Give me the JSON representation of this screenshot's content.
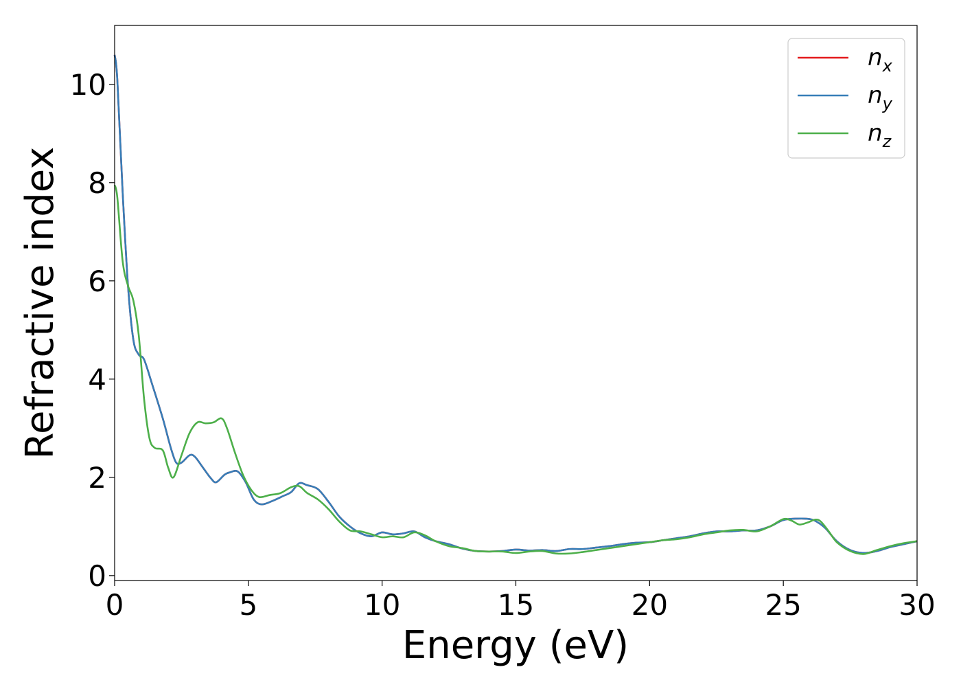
{
  "chart_data": {
    "type": "line",
    "title": "",
    "xlabel": "Energy (eV)",
    "ylabel": "Refractive index",
    "xlim": [
      0,
      30
    ],
    "ylim": [
      -0.1,
      11.2
    ],
    "xticks": [
      0,
      5,
      10,
      15,
      20,
      25,
      30
    ],
    "yticks": [
      0,
      2,
      4,
      6,
      8,
      10
    ],
    "grid": false,
    "legend_position": "top-right",
    "series": [
      {
        "name": "n",
        "subscript": "x",
        "color": "#e41a1c",
        "x": [
          0,
          0.1,
          0.3,
          0.5,
          0.7,
          0.9,
          1.1,
          1.4,
          1.8,
          2.1,
          2.3,
          2.5,
          2.8,
          3.0,
          3.3,
          3.6,
          3.8,
          4.1,
          4.3,
          4.6,
          4.9,
          5.2,
          5.5,
          5.9,
          6.3,
          6.6,
          6.9,
          7.2,
          7.6,
          8.0,
          8.4,
          8.8,
          9.2,
          9.6,
          10.0,
          10.4,
          10.8,
          11.2,
          11.6,
          12.0,
          12.5,
          13.0,
          13.5,
          14.0,
          14.5,
          15.0,
          15.5,
          16.0,
          16.5,
          17.0,
          17.5,
          18.0,
          18.5,
          19.0,
          19.5,
          20.0,
          20.5,
          21.0,
          21.5,
          22.0,
          22.5,
          23.0,
          23.5,
          24.0,
          24.5,
          25.0,
          25.5,
          26.0,
          26.3,
          26.6,
          27.0,
          27.5,
          28.0,
          28.5,
          29.0,
          29.5,
          30.0
        ],
        "y": [
          10.6,
          10.1,
          7.8,
          5.9,
          4.8,
          4.5,
          4.4,
          3.9,
          3.2,
          2.6,
          2.3,
          2.3,
          2.45,
          2.42,
          2.2,
          1.98,
          1.9,
          2.05,
          2.1,
          2.12,
          1.9,
          1.55,
          1.45,
          1.52,
          1.62,
          1.7,
          1.88,
          1.84,
          1.76,
          1.5,
          1.2,
          1.0,
          0.86,
          0.8,
          0.88,
          0.84,
          0.86,
          0.9,
          0.78,
          0.7,
          0.64,
          0.55,
          0.5,
          0.49,
          0.5,
          0.53,
          0.51,
          0.52,
          0.5,
          0.54,
          0.54,
          0.57,
          0.6,
          0.64,
          0.67,
          0.68,
          0.72,
          0.76,
          0.8,
          0.86,
          0.9,
          0.9,
          0.92,
          0.92,
          1.0,
          1.13,
          1.16,
          1.15,
          1.08,
          0.95,
          0.7,
          0.52,
          0.46,
          0.5,
          0.58,
          0.64,
          0.7
        ]
      },
      {
        "name": "n",
        "subscript": "y",
        "color": "#377eb8",
        "x": [
          0,
          0.1,
          0.3,
          0.5,
          0.7,
          0.9,
          1.1,
          1.4,
          1.8,
          2.1,
          2.3,
          2.5,
          2.8,
          3.0,
          3.3,
          3.6,
          3.8,
          4.1,
          4.3,
          4.6,
          4.9,
          5.2,
          5.5,
          5.9,
          6.3,
          6.6,
          6.9,
          7.2,
          7.6,
          8.0,
          8.4,
          8.8,
          9.2,
          9.6,
          10.0,
          10.4,
          10.8,
          11.2,
          11.6,
          12.0,
          12.5,
          13.0,
          13.5,
          14.0,
          14.5,
          15.0,
          15.5,
          16.0,
          16.5,
          17.0,
          17.5,
          18.0,
          18.5,
          19.0,
          19.5,
          20.0,
          20.5,
          21.0,
          21.5,
          22.0,
          22.5,
          23.0,
          23.5,
          24.0,
          24.5,
          25.0,
          25.5,
          26.0,
          26.3,
          26.6,
          27.0,
          27.5,
          28.0,
          28.5,
          29.0,
          29.5,
          30.0
        ],
        "y": [
          10.6,
          10.1,
          7.8,
          5.9,
          4.8,
          4.5,
          4.4,
          3.9,
          3.2,
          2.6,
          2.3,
          2.3,
          2.45,
          2.42,
          2.2,
          1.98,
          1.9,
          2.05,
          2.1,
          2.12,
          1.9,
          1.55,
          1.45,
          1.52,
          1.62,
          1.7,
          1.88,
          1.84,
          1.76,
          1.5,
          1.2,
          1.0,
          0.86,
          0.8,
          0.88,
          0.84,
          0.86,
          0.9,
          0.78,
          0.7,
          0.64,
          0.55,
          0.5,
          0.49,
          0.5,
          0.53,
          0.51,
          0.52,
          0.5,
          0.54,
          0.54,
          0.57,
          0.6,
          0.64,
          0.67,
          0.68,
          0.72,
          0.76,
          0.8,
          0.86,
          0.9,
          0.9,
          0.92,
          0.92,
          1.0,
          1.13,
          1.16,
          1.15,
          1.08,
          0.95,
          0.7,
          0.52,
          0.46,
          0.5,
          0.58,
          0.64,
          0.7
        ]
      },
      {
        "name": "n",
        "subscript": "z",
        "color": "#4daf4a",
        "x": [
          0,
          0.1,
          0.3,
          0.5,
          0.7,
          0.9,
          1.1,
          1.3,
          1.5,
          1.8,
          2.0,
          2.2,
          2.5,
          2.8,
          3.1,
          3.4,
          3.7,
          4.0,
          4.2,
          4.5,
          4.8,
          5.1,
          5.4,
          5.8,
          6.2,
          6.6,
          6.9,
          7.2,
          7.6,
          8.0,
          8.4,
          8.8,
          9.2,
          9.6,
          10.0,
          10.4,
          10.8,
          11.2,
          11.6,
          12.0,
          12.5,
          13.0,
          13.5,
          14.0,
          14.5,
          15.0,
          15.5,
          16.0,
          16.5,
          17.0,
          17.5,
          18.0,
          18.5,
          19.0,
          19.5,
          20.0,
          20.5,
          21.0,
          21.5,
          22.0,
          22.5,
          23.0,
          23.5,
          24.0,
          24.5,
          25.0,
          25.3,
          25.6,
          25.9,
          26.2,
          26.4,
          26.7,
          27.0,
          27.5,
          28.0,
          28.5,
          29.0,
          29.5,
          30.0
        ],
        "y": [
          7.95,
          7.7,
          6.4,
          5.9,
          5.6,
          4.9,
          3.6,
          2.8,
          2.6,
          2.55,
          2.2,
          2.0,
          2.45,
          2.9,
          3.12,
          3.1,
          3.12,
          3.2,
          3.0,
          2.5,
          2.05,
          1.75,
          1.6,
          1.64,
          1.68,
          1.8,
          1.82,
          1.68,
          1.55,
          1.35,
          1.1,
          0.92,
          0.9,
          0.84,
          0.78,
          0.8,
          0.78,
          0.88,
          0.82,
          0.7,
          0.6,
          0.56,
          0.5,
          0.49,
          0.49,
          0.46,
          0.49,
          0.5,
          0.45,
          0.45,
          0.48,
          0.52,
          0.56,
          0.6,
          0.64,
          0.68,
          0.72,
          0.74,
          0.78,
          0.84,
          0.88,
          0.92,
          0.93,
          0.9,
          1.0,
          1.15,
          1.12,
          1.04,
          1.08,
          1.14,
          1.1,
          0.9,
          0.68,
          0.5,
          0.44,
          0.52,
          0.6,
          0.66,
          0.7
        ]
      }
    ]
  }
}
